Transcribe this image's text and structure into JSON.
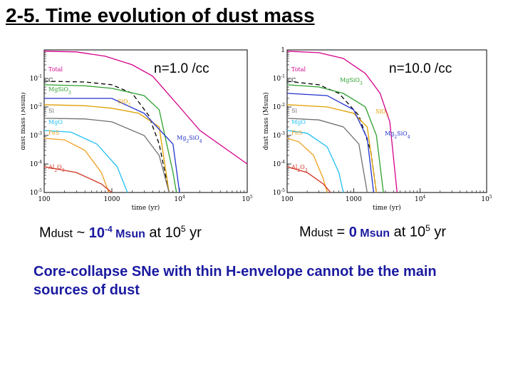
{
  "title": "2-5. Time evolution of dust mass",
  "colors": {
    "Total": "#d4008a",
    "C": "#000000",
    "MgSiO3": "#2ea02e",
    "SiO2": "#e0a000",
    "Si": "#707070",
    "MgO": "#22c0f0",
    "FeS": "#f0a020",
    "Al2O3": "#d03020",
    "Mg2SiO4": "#2233cc",
    "title_blue": "#1a1aa0"
  },
  "chart_data": [
    {
      "type": "line",
      "label": "n=1.0 /cc",
      "xlabel": "time (yr)",
      "ylabel": "dust mass (Msun)",
      "x_scale": "log",
      "y_scale": "log",
      "xlim": [
        100,
        100000
      ],
      "ylim": [
        1e-05,
        1
      ],
      "x_ticks": [
        "100",
        "1000",
        "10^4",
        "10^5"
      ],
      "y_ticks": [
        "10^-5",
        "10^-4",
        "10^-3",
        "10^-2",
        "10^-1"
      ],
      "series": [
        {
          "name": "Total",
          "label": "Total",
          "color": "#d4008a",
          "dash": "",
          "points": [
            [
              100,
              0.9
            ],
            [
              300,
              0.85
            ],
            [
              800,
              0.6
            ],
            [
              2000,
              0.3
            ],
            [
              4000,
              0.12
            ],
            [
              10000,
              0.01
            ],
            [
              20000,
              0.0015
            ],
            [
              100000,
              0.0001
            ]
          ]
        },
        {
          "name": "C",
          "label": "C",
          "color": "#000000",
          "dash": "6,4",
          "points": [
            [
              100,
              0.08
            ],
            [
              400,
              0.075
            ],
            [
              1000,
              0.06
            ],
            [
              2000,
              0.03
            ],
            [
              3500,
              0.005
            ],
            [
              5000,
              0.0005
            ],
            [
              7000,
              1e-05
            ]
          ]
        },
        {
          "name": "MgSiO3",
          "label": "MgSiO3",
          "color": "#2ea02e",
          "dash": "",
          "points": [
            [
              100,
              0.06
            ],
            [
              400,
              0.055
            ],
            [
              1000,
              0.045
            ],
            [
              3000,
              0.025
            ],
            [
              5000,
              0.008
            ],
            [
              8000,
              5e-05
            ],
            [
              9000,
              1e-05
            ]
          ]
        },
        {
          "name": "SiO2",
          "label": "SiO2",
          "color": "#e0a000",
          "dash": "",
          "points": [
            [
              100,
              0.012
            ],
            [
              400,
              0.011
            ],
            [
              1000,
              0.009
            ],
            [
              2500,
              0.006
            ],
            [
              5000,
              0.002
            ],
            [
              7000,
              1e-05
            ]
          ]
        },
        {
          "name": "Si",
          "label": "Si",
          "color": "#707070",
          "dash": "",
          "points": [
            [
              100,
              0.004
            ],
            [
              400,
              0.0038
            ],
            [
              1000,
              0.003
            ],
            [
              3000,
              0.001
            ],
            [
              5000,
              0.0002
            ],
            [
              7000,
              1e-05
            ]
          ]
        },
        {
          "name": "MgO",
          "label": "MgO",
          "color": "#22c0f0",
          "dash": "",
          "points": [
            [
              100,
              0.0015
            ],
            [
              250,
              0.0013
            ],
            [
              600,
              0.0005
            ],
            [
              1200,
              8e-05
            ],
            [
              1700,
              1e-05
            ]
          ]
        },
        {
          "name": "FeS",
          "label": "FeS",
          "color": "#f0a020",
          "dash": "",
          "points": [
            [
              100,
              0.0008
            ],
            [
              200,
              0.0007
            ],
            [
              400,
              0.0003
            ],
            [
              700,
              5e-05
            ],
            [
              900,
              1e-05
            ]
          ]
        },
        {
          "name": "Al2O3",
          "label": "Al2O3",
          "color": "#d03020",
          "dash": "",
          "points": [
            [
              100,
              8e-05
            ],
            [
              300,
              5e-05
            ],
            [
              700,
              2e-05
            ],
            [
              1000,
              1e-05
            ]
          ]
        },
        {
          "name": "Mg2SiO4",
          "label": "Mg2SiO4",
          "color": "#2233cc",
          "dash": "",
          "points": [
            [
              100,
              0.02
            ],
            [
              1000,
              0.02
            ],
            [
              3000,
              0.006
            ],
            [
              8000,
              0.0005
            ],
            [
              10000,
              1e-05
            ]
          ]
        }
      ]
    },
    {
      "type": "line",
      "label": "n=10.0 /cc",
      "xlabel": "time (yr)",
      "ylabel": "dust mass (Msun)",
      "x_scale": "log",
      "y_scale": "log",
      "xlim": [
        100,
        100000
      ],
      "ylim": [
        1e-05,
        1
      ],
      "x_ticks": [
        "100",
        "1000",
        "10^4",
        "10^5"
      ],
      "y_ticks": [
        "10^-5",
        "10^-4",
        "10^-3",
        "10^-2",
        "10^-1",
        "1"
      ],
      "series": [
        {
          "name": "Total",
          "label": "Total",
          "color": "#d4008a",
          "dash": "",
          "points": [
            [
              100,
              0.9
            ],
            [
              300,
              0.8
            ],
            [
              700,
              0.5
            ],
            [
              1500,
              0.15
            ],
            [
              2500,
              0.03
            ],
            [
              3500,
              0.003
            ],
            [
              4500,
              1e-05
            ]
          ]
        },
        {
          "name": "C",
          "label": "C",
          "color": "#000000",
          "dash": "6,4",
          "points": [
            [
              100,
              0.08
            ],
            [
              300,
              0.06
            ],
            [
              600,
              0.03
            ],
            [
              1200,
              0.005
            ],
            [
              1800,
              0.0003
            ],
            [
              2200,
              1e-05
            ]
          ]
        },
        {
          "name": "MgSiO3",
          "label": "MgSiO3",
          "color": "#2ea02e",
          "dash": "",
          "points": [
            [
              100,
              0.06
            ],
            [
              300,
              0.05
            ],
            [
              700,
              0.03
            ],
            [
              1500,
              0.01
            ],
            [
              2200,
              0.001
            ],
            [
              2800,
              1e-05
            ]
          ]
        },
        {
          "name": "SiO2",
          "label": "SiO2",
          "color": "#e0a000",
          "dash": "",
          "points": [
            [
              100,
              0.012
            ],
            [
              400,
              0.01
            ],
            [
              1000,
              0.006
            ],
            [
              1600,
              0.002
            ],
            [
              2200,
              1e-05
            ]
          ]
        },
        {
          "name": "Si",
          "label": "Si",
          "color": "#707070",
          "dash": "",
          "points": [
            [
              100,
              0.004
            ],
            [
              300,
              0.0035
            ],
            [
              700,
              0.002
            ],
            [
              1200,
              0.0005
            ],
            [
              1600,
              1e-05
            ]
          ]
        },
        {
          "name": "MgO",
          "label": "MgO",
          "color": "#22c0f0",
          "dash": "",
          "points": [
            [
              100,
              0.0015
            ],
            [
              200,
              0.0012
            ],
            [
              400,
              0.0004
            ],
            [
              600,
              5e-05
            ],
            [
              700,
              1e-05
            ]
          ]
        },
        {
          "name": "FeS",
          "label": "FeS",
          "color": "#f0a020",
          "dash": "",
          "points": [
            [
              100,
              0.0008
            ],
            [
              150,
              0.0006
            ],
            [
              250,
              0.0002
            ],
            [
              350,
              3e-05
            ],
            [
              400,
              1e-05
            ]
          ]
        },
        {
          "name": "Al2O3",
          "label": "Al2O3",
          "color": "#d03020",
          "dash": "",
          "points": [
            [
              100,
              8e-05
            ],
            [
              200,
              5e-05
            ],
            [
              350,
              2e-05
            ],
            [
              450,
              1e-05
            ]
          ]
        },
        {
          "name": "Mg2SiO4",
          "label": "Mg2SiO4",
          "color": "#2233cc",
          "dash": "",
          "points": [
            [
              100,
              0.03
            ],
            [
              400,
              0.025
            ],
            [
              1000,
              0.008
            ],
            [
              1600,
              0.0008
            ],
            [
              2000,
              1e-05
            ]
          ]
        }
      ]
    }
  ],
  "plot_labels": {
    "left": "n=1.0 /cc",
    "right": "n=10.0 /cc"
  },
  "captions": {
    "left": {
      "m": "M",
      "dust": "dust",
      "approx": " ~ ",
      "val_base": "10",
      "val_exp": "-4",
      "msun": " Msun",
      "at": " at ",
      "t_base": "10",
      "t_exp": "5",
      "yr": " yr"
    },
    "right": {
      "m": "M",
      "dust": "dust",
      "approx": " = ",
      "val_base": "0",
      "msun": " Msun",
      "at": " at ",
      "t_base": "10",
      "t_exp": "5",
      "yr": " yr"
    }
  },
  "conclusion": "Core-collapse SNe with thin H-envelope cannot be the main sources of dust"
}
